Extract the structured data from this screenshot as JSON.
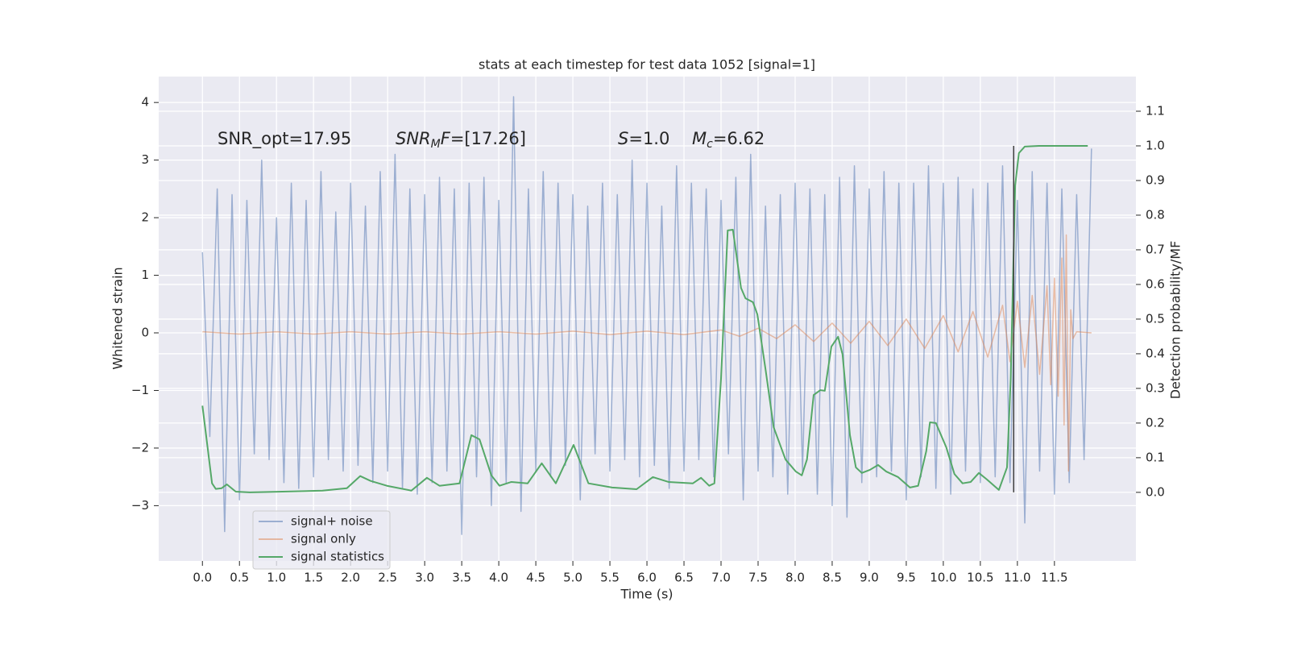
{
  "chart_data": {
    "type": "line",
    "title": "stats at each timestep for test data 1052 [signal=1]",
    "xlabel": "Time (s)",
    "ylabel": "Whitened strain",
    "y2label": "Detection probability/MF",
    "xlim": [
      -0.59,
      12.6
    ],
    "ylim": [
      -3.96,
      4.45
    ],
    "y2lim": [
      -0.198,
      1.2
    ],
    "xticks": [
      {
        "value": 0,
        "label": "0.0"
      },
      {
        "value": 0.5,
        "label": "0.5"
      },
      {
        "value": 1,
        "label": "1.0"
      },
      {
        "value": 1.5,
        "label": "1.5"
      },
      {
        "value": 2,
        "label": "2.0"
      },
      {
        "value": 2.5,
        "label": "2.5"
      },
      {
        "value": 3,
        "label": "3.0"
      },
      {
        "value": 3.5,
        "label": "3.5"
      },
      {
        "value": 4,
        "label": "4.0"
      },
      {
        "value": 4.5,
        "label": "4.5"
      },
      {
        "value": 5,
        "label": "5.0"
      },
      {
        "value": 5.5,
        "label": "5.5"
      },
      {
        "value": 6,
        "label": "6.0"
      },
      {
        "value": 6.5,
        "label": "6.5"
      },
      {
        "value": 7,
        "label": "7.0"
      },
      {
        "value": 7.5,
        "label": "7.5"
      },
      {
        "value": 8,
        "label": "8.0"
      },
      {
        "value": 8.5,
        "label": "8.5"
      },
      {
        "value": 9,
        "label": "9.0"
      },
      {
        "value": 9.5,
        "label": "9.5"
      },
      {
        "value": 10,
        "label": "10.0"
      },
      {
        "value": 10.5,
        "label": "10.5"
      },
      {
        "value": 11,
        "label": "11.0"
      },
      {
        "value": 11.5,
        "label": "11.5"
      }
    ],
    "yticks": [
      {
        "value": -3,
        "label": "−3"
      },
      {
        "value": -2,
        "label": "−2"
      },
      {
        "value": -1,
        "label": "−1"
      },
      0,
      1,
      2,
      3,
      4
    ],
    "y2ticks": [
      {
        "value": 0,
        "label": "0.0"
      },
      {
        "value": 0.1,
        "label": "0.1"
      },
      {
        "value": 0.2,
        "label": "0.2"
      },
      {
        "value": 0.3,
        "label": "0.3"
      },
      {
        "value": 0.4,
        "label": "0.4"
      },
      {
        "value": 0.5,
        "label": "0.5"
      },
      {
        "value": 0.6,
        "label": "0.6"
      },
      {
        "value": 0.7,
        "label": "0.7"
      },
      {
        "value": 0.8,
        "label": "0.8"
      },
      {
        "value": 0.9,
        "label": "0.9"
      },
      {
        "value": 1,
        "label": "1.0"
      },
      {
        "value": 1.1,
        "label": "1.1"
      }
    ],
    "grid": true,
    "legend": "lower left",
    "series": [
      {
        "name": "signal+ noise",
        "color": "#4c72b0",
        "alpha": 0.5,
        "x": [
          0,
          0.1,
          0.2,
          0.3,
          0.4,
          0.5,
          0.6,
          0.7,
          0.8,
          0.9,
          1,
          1.1,
          1.2,
          1.3,
          1.4,
          1.5,
          1.6,
          1.7,
          1.8,
          1.9,
          2,
          2.1,
          2.2,
          2.3,
          2.4,
          2.5,
          2.6,
          2.7,
          2.8,
          2.9,
          3,
          3.1,
          3.2,
          3.3,
          3.4,
          3.5,
          3.6,
          3.7,
          3.8,
          3.9,
          4,
          4.1,
          4.2,
          4.3,
          4.4,
          4.5,
          4.6,
          4.7,
          4.8,
          4.9,
          5,
          5.1,
          5.2,
          5.3,
          5.4,
          5.5,
          5.6,
          5.7,
          5.8,
          5.9,
          6,
          6.1,
          6.2,
          6.3,
          6.4,
          6.5,
          6.6,
          6.7,
          6.8,
          6.9,
          7,
          7.1,
          7.2,
          7.3,
          7.4,
          7.5,
          7.6,
          7.7,
          7.8,
          7.9,
          8,
          8.1,
          8.2,
          8.3,
          8.4,
          8.5,
          8.6,
          8.7,
          8.8,
          8.9,
          9,
          9.1,
          9.2,
          9.3,
          9.4,
          9.5,
          9.6,
          9.7,
          9.8,
          9.9,
          10,
          10.1,
          10.2,
          10.3,
          10.4,
          10.5,
          10.6,
          10.7,
          10.8,
          10.9,
          11,
          11.1,
          11.2,
          11.3,
          11.4,
          11.5,
          11.6,
          11.7,
          11.8,
          11.9,
          12
        ],
        "values": [
          1.4,
          -1.8,
          2.5,
          -3.45,
          2.4,
          -2.9,
          2.3,
          -2.1,
          3.0,
          -2.2,
          2.0,
          -2.6,
          2.6,
          -2.7,
          2.3,
          -2.5,
          2.8,
          -2.2,
          2.1,
          -2.4,
          2.6,
          -2.3,
          2.2,
          -2.6,
          2.8,
          -2.4,
          3.1,
          -2.7,
          2.5,
          -2.8,
          2.4,
          -2.6,
          2.7,
          -2.4,
          2.5,
          -3.5,
          2.6,
          -2.5,
          2.7,
          -3.0,
          2.3,
          -2.6,
          4.1,
          -3.1,
          2.5,
          -2.4,
          2.8,
          -2.5,
          2.6,
          -2.3,
          2.4,
          -2.9,
          2.2,
          -2.1,
          2.6,
          -2.4,
          2.4,
          -2.2,
          3.0,
          -2.5,
          2.6,
          -2.3,
          2.2,
          -2.7,
          2.9,
          -2.4,
          2.6,
          -2.2,
          2.5,
          -2.5,
          2.3,
          -2.1,
          2.7,
          -2.9,
          3.1,
          -2.4,
          2.2,
          -2.5,
          2.4,
          -2.8,
          2.6,
          -2.4,
          2.5,
          -2.8,
          2.4,
          -3.0,
          2.7,
          -3.2,
          2.9,
          -2.6,
          2.5,
          -2.5,
          2.8,
          -2.4,
          2.6,
          -2.9,
          2.6,
          -2.5,
          2.9,
          -2.7,
          2.6,
          -2.8,
          2.7,
          -2.4,
          2.5,
          -2.6,
          2.6,
          -2.5,
          2.9,
          -2.6,
          2.3,
          -3.3,
          2.8,
          -2.4,
          2.6,
          -2.8,
          2.5,
          -2.6,
          2.4,
          -2.2,
          3.2
        ]
      },
      {
        "name": "signal only",
        "color": "#dd8452",
        "alpha": 0.5,
        "x": [
          0,
          0.5,
          1,
          1.5,
          2,
          2.5,
          3,
          3.5,
          4,
          4.5,
          5,
          5.5,
          6,
          6.5,
          7,
          7.25,
          7.5,
          7.75,
          8,
          8.25,
          8.5,
          8.75,
          9,
          9.25,
          9.5,
          9.75,
          10,
          10.2,
          10.4,
          10.6,
          10.8,
          10.9,
          11,
          11.1,
          11.2,
          11.3,
          11.4,
          11.45,
          11.5,
          11.55,
          11.6,
          11.63,
          11.66,
          11.69,
          11.72,
          11.75,
          11.8,
          12
        ],
        "values": [
          0.02,
          -0.02,
          0.02,
          -0.02,
          0.02,
          -0.02,
          0.02,
          -0.02,
          0.02,
          -0.02,
          0.03,
          -0.03,
          0.03,
          -0.03,
          0.05,
          -0.06,
          0.08,
          -0.1,
          0.14,
          -0.15,
          0.17,
          -0.18,
          0.2,
          -0.22,
          0.24,
          -0.27,
          0.3,
          -0.33,
          0.37,
          -0.42,
          0.48,
          -0.5,
          0.55,
          -0.6,
          0.65,
          -0.72,
          0.82,
          -0.9,
          0.95,
          -1.1,
          1.3,
          -1.6,
          1.7,
          -2.4,
          0.4,
          -0.1,
          0.02,
          0
        ]
      },
      {
        "name": "signal statistics",
        "color": "#55a868",
        "axis": "y2",
        "x": [
          0,
          0.13,
          0.18,
          0.26,
          0.33,
          0.45,
          0.64,
          1.08,
          1.62,
          1.95,
          2.13,
          2.27,
          2.49,
          2.82,
          3.03,
          3.2,
          3.47,
          3.63,
          3.74,
          3.9,
          4.01,
          4.17,
          4.39,
          4.58,
          4.77,
          5.01,
          5.21,
          5.53,
          5.86,
          6.08,
          6.29,
          6.62,
          6.73,
          6.84,
          6.91,
          7.0,
          7.09,
          7.16,
          7.27,
          7.33,
          7.43,
          7.49,
          7.6,
          7.71,
          7.87,
          8.01,
          8.09,
          8.16,
          8.25,
          8.34,
          8.4,
          8.49,
          8.58,
          8.64,
          8.74,
          8.82,
          8.9,
          9.01,
          9.12,
          9.23,
          9.39,
          9.55,
          9.66,
          9.77,
          9.82,
          9.9,
          10.04,
          10.15,
          10.26,
          10.37,
          10.48,
          10.59,
          10.75,
          10.86,
          10.91,
          10.97,
          11.02,
          11.1,
          11.29,
          11.95
        ],
        "values": [
          0.25,
          0.026,
          0.01,
          0.012,
          0.023,
          0.002,
          0.0,
          0.002,
          0.005,
          0.012,
          0.047,
          0.033,
          0.019,
          0.005,
          0.042,
          0.019,
          0.026,
          0.165,
          0.153,
          0.049,
          0.019,
          0.03,
          0.026,
          0.084,
          0.026,
          0.137,
          0.026,
          0.014,
          0.009,
          0.044,
          0.03,
          0.026,
          0.042,
          0.019,
          0.026,
          0.328,
          0.756,
          0.758,
          0.59,
          0.56,
          0.549,
          0.514,
          0.356,
          0.188,
          0.095,
          0.06,
          0.049,
          0.095,
          0.281,
          0.295,
          0.293,
          0.421,
          0.449,
          0.398,
          0.165,
          0.072,
          0.056,
          0.065,
          0.079,
          0.06,
          0.044,
          0.014,
          0.019,
          0.119,
          0.202,
          0.2,
          0.13,
          0.053,
          0.026,
          0.03,
          0.056,
          0.037,
          0.007,
          0.072,
          0.328,
          0.886,
          0.979,
          0.998,
          1.0,
          1.0
        ]
      }
    ],
    "vline": {
      "x": 10.95,
      "ymin": 0,
      "ymax": 1,
      "axis": "y2",
      "color": "#404040"
    },
    "annotations": [
      [
        {
          "text": "SNR_opt=17.95"
        }
      ],
      [
        {
          "text": "SNR",
          "style": "italic"
        },
        {
          "text": "M",
          "style": "italic-sub"
        },
        {
          "text": "F",
          "style": "italic"
        },
        {
          "text": "=[17.26]"
        }
      ],
      [
        {
          "text": "S",
          "style": "italic"
        },
        {
          "text": "=1.0"
        }
      ],
      [
        {
          "text": "M",
          "style": "italic"
        },
        {
          "text": "c",
          "style": "italic-sub"
        },
        {
          "text": "=6.62"
        }
      ]
    ]
  }
}
